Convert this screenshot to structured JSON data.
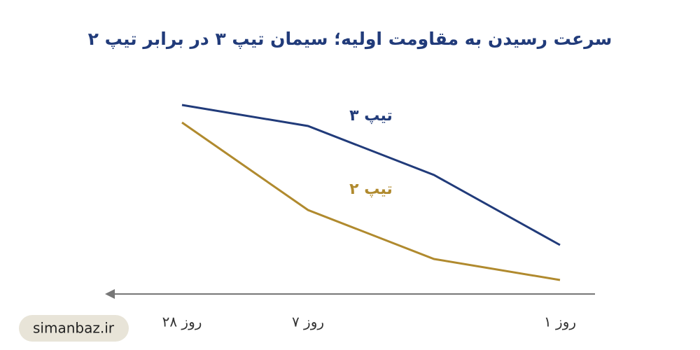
{
  "chart_data": {
    "type": "line",
    "title": "سرعت رسیدن به مقاومت اولیه؛ سیمان تیپ ۳ در برابر تیپ ۲",
    "categories": [
      "روز ۱",
      null,
      "روز ۷",
      "روز ۲۸"
    ],
    "series": [
      {
        "name": "تیپ ۳",
        "color": "#213b7a",
        "values": [
          70,
          170,
          240,
          270
        ]
      },
      {
        "name": "تیپ ۲",
        "color": "#b08a2e",
        "values": [
          20,
          50,
          120,
          245
        ]
      }
    ],
    "ylim": [
      0,
      300
    ]
  },
  "watermark": "simanbaz.ir"
}
